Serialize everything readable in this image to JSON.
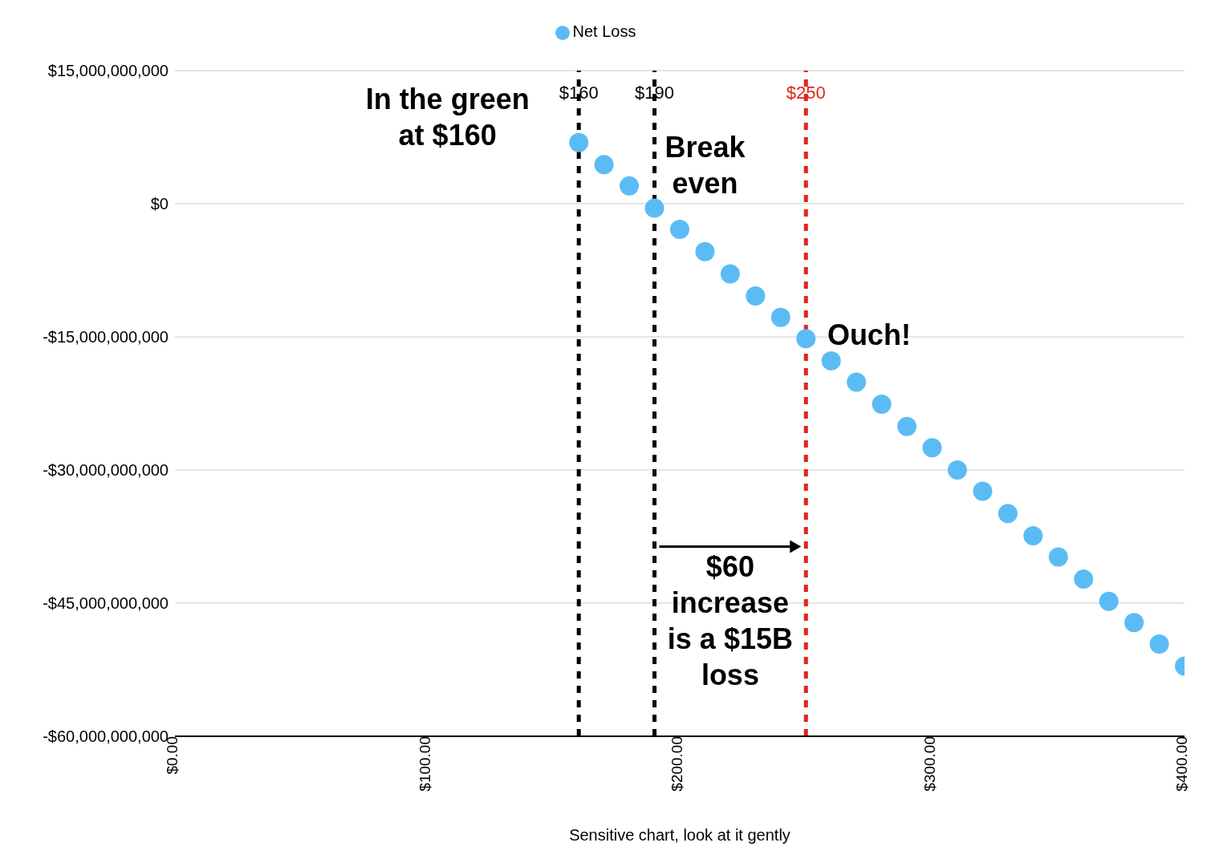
{
  "chart_data": {
    "type": "scatter",
    "xlabel": "Sensitive chart, look at it gently",
    "x": [
      160,
      170,
      180,
      190,
      200,
      210,
      220,
      230,
      240,
      250,
      260,
      270,
      280,
      290,
      300,
      310,
      320,
      330,
      340,
      350,
      360,
      370,
      380,
      390,
      400
    ],
    "series": [
      {
        "name": "Net Loss",
        "color": "#5bbcf5",
        "values": [
          6900000000,
          4400000000,
          2000000000,
          -500000000,
          -2900000000,
          -5400000000,
          -7900000000,
          -10400000000,
          -12800000000,
          -15200000000,
          -17700000000,
          -20100000000,
          -22600000000,
          -25100000000,
          -27500000000,
          -30000000000,
          -32400000000,
          -34900000000,
          -37400000000,
          -39800000000,
          -42300000000,
          -44800000000,
          -47200000000,
          -49600000000,
          -52100000000
        ]
      }
    ],
    "xlim": [
      0,
      400
    ],
    "xticks": [
      {
        "value": 0,
        "label": "$0.00"
      },
      {
        "value": 100,
        "label": "$100.00"
      },
      {
        "value": 200,
        "label": "$200.00"
      },
      {
        "value": 300,
        "label": "$300.00"
      },
      {
        "value": 400,
        "label": "$400.00"
      }
    ],
    "ylim": [
      -60000000000,
      15000000000
    ],
    "yticks": [
      {
        "value": -60000000000,
        "label": "-$60,000,000,000"
      },
      {
        "value": -45000000000,
        "label": "-$45,000,000,000"
      },
      {
        "value": -30000000000,
        "label": "-$30,000,000,000"
      },
      {
        "value": -15000000000,
        "label": "-$15,000,000,000"
      },
      {
        "value": 0,
        "label": "$0"
      },
      {
        "value": 15000000000,
        "label": "$15,000,000,000"
      }
    ],
    "ref_lines": [
      {
        "axis": "x",
        "value": 160,
        "label": "$160",
        "color": "#000000",
        "line_style": "dashed"
      },
      {
        "axis": "x",
        "value": 190,
        "label": "$190",
        "color": "#000000",
        "line_style": "dashed"
      },
      {
        "axis": "x",
        "value": 250,
        "label": "$250",
        "color": "#e0261b",
        "line_style": "dashed"
      }
    ],
    "annotations": [
      "In the green at $160",
      "Break even",
      "Ouch!",
      "$60 increase is a $15B loss"
    ],
    "grid": "y",
    "legend": "top",
    "marker": "circle"
  }
}
